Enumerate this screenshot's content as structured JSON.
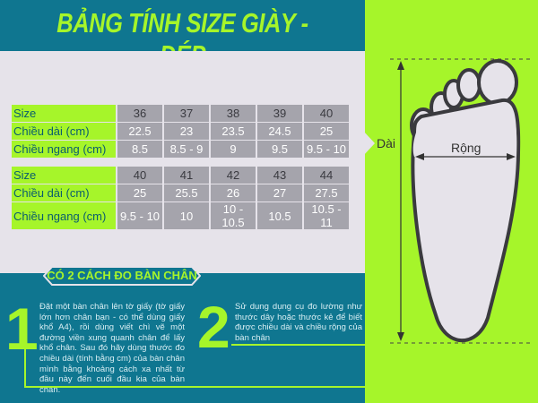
{
  "title": "BẢNG TÍNH SIZE GIÀY -  DÉP",
  "table1": {
    "rows": [
      {
        "label": "Size",
        "values": [
          "36",
          "37",
          "38",
          "39",
          "40"
        ]
      },
      {
        "label": "Chiều dài (cm)",
        "values": [
          "22.5",
          "23",
          "23.5",
          "24.5",
          "25"
        ]
      },
      {
        "label": "Chiều ngang (cm)",
        "values": [
          "8.5",
          "8.5 - 9",
          "9",
          "9.5",
          "9.5 - 10"
        ]
      }
    ]
  },
  "table2": {
    "rows": [
      {
        "label": "Size",
        "values": [
          "40",
          "41",
          "42",
          "43",
          "44"
        ]
      },
      {
        "label": "Chiều dài (cm)",
        "values": [
          "25",
          "25.5",
          "26",
          "27",
          "27.5"
        ]
      },
      {
        "label": "Chiều ngang (cm)",
        "values": [
          "9.5 - 10",
          "10",
          "10 - 10.5",
          "10.5",
          "10.5 - 11"
        ]
      }
    ]
  },
  "methods": {
    "heading": "CÓ 2 CÁCH ĐO BÀN CHÂN",
    "items": [
      {
        "number": "1",
        "text": "Đặt một bàn chân lên tờ giấy (tờ giấy lớn hơn chân bạn - có thể dùng giấy khổ A4), rồi dùng viết chì vẽ một đường viền xung quanh chân để lấy khổ chân. Sau đó hãy dùng thước đo chiều dài (tính bằng cm) của bàn chân mình bằng khoảng cách xa nhất từ đầu này đến cuối đầu kia của bàn chân."
      },
      {
        "number": "2",
        "text": "Sử  dụng dụng cụ đo lường như thước dây hoặc thước kẻ để biết được chiều dài và chiều rộng của bàn chân"
      }
    ]
  },
  "diagram": {
    "length_label": "Dài",
    "width_label": "Rộng"
  },
  "colors": {
    "teal": "#0f7690",
    "lime": "#a6f52a",
    "gray": "#e6e3ea",
    "cell": "#a5a4ac"
  }
}
